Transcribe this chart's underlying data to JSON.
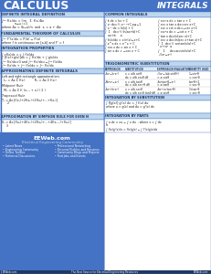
{
  "title_left": "CALCULUS",
  "title_right": "INTEGRALS",
  "header_bg": "#4472C4",
  "header_text_color": "#FFFFFF",
  "section_header_bg": "#BDD7EE",
  "section_header_text": "#1F3864",
  "body_bg": "#FFFFFF",
  "body_text": "#222222",
  "border_color": "#4472C4",
  "footer_bg": "#4472C4",
  "footer_main": "EEWeb.com",
  "footer_sub": "Electrical Engineering Community",
  "footer_bullets_left": [
    "Latest News",
    "Engineering Community",
    "Online Toolbox",
    "Technical Discussions"
  ],
  "footer_bullets_right": [
    "Professional Networking",
    "Personal Profiles and Resumes",
    "Community Blogs and Projects",
    "Find Jobs and Events"
  ],
  "footer_bottom": "EEWeb.com            The Best Source for Electrical Engineering Resources            EEWeb.com",
  "left_sections": [
    {
      "title": "DEFINITE INTEGRAL DEFINITION",
      "lines": [
        "∫ᵃᵇ f(x)dx = lim  Σ f(xᵢ)Δx",
        "           n→∞ i=1",
        "where Δx = (b-a)/n  and  xᵢ = a + iΔx"
      ]
    },
    {
      "title": "FUNDAMENTAL THEOREM OF CALCULUS",
      "lines": [
        "∫ᵃᵇ F'(x)dx = F(b) - F(a)",
        "where f is continuous on [a,b] and F' = f"
      ]
    },
    {
      "title": "INTEGRATION PROPERTIES",
      "lines": [
        "∫ cf(x)dx = c ∫ f(x)dx",
        "∫ [f(x) + g(x)]dx = ∫ f(x)dx + ∫ g(x)dx",
        "∫ᵃᵇ f(x)dx = 0  and  ∫ᵃᵇ f(x)dx = -∫ᵇᵃ f(x)dx",
        "∫ᵃᵇ f(x)dx + ∫ᵇᶜ f(x)dx = ∫ᵃᶜ f(x)dx"
      ]
    },
    {
      "title": "APPROXIMATING DEFINITE INTEGRALS",
      "lines": [
        "Left and right rectangle approximations",
        "          n                    n",
        "Lₙ=Δx Σ f(xᵢ)       Rₙ=Δx Σ f(xᵢ)",
        "         i=1                  i=1",
        "Midpoint Rule",
        "       n",
        "Mₙ=Δx Σ  f( (xᵢ₋₁+xᵢ)/2 )",
        "      i=1",
        "Trapezoid Rule",
        "Tₙ=(Δx/2)[f(x₀)+2f(x₁)+2f(x₂)+...+f(xₙ)]"
      ]
    }
  ],
  "right_sections_top": [
    {
      "title": "COMMON INTEGRALS",
      "col1": [
        "∫ k dx = kx + C",
        "∫ xⁿ dx = ½ x^{n+1} + C, n ≠ -1",
        "              n+1",
        "∫ x⁻¹ dx = ∫ ½ dx = ln|x| + C",
        "              x",
        "∫  ½   dx = ½ ln|ax+b| + C",
        "   ax+b       a",
        "∫ ln(x) dx = x ln(x) - x + C",
        "∫ e^x dx = e^x + C",
        "∫ cos x dx = sin x + C",
        "∫ sin x dx = -cos x + C"
      ],
      "col2": [
        "∫ sec²x dx = tan x + C",
        "∫ sec x tan x dx = sec x + C",
        "∫ csc x cot x dx = -csc x + C",
        "∫ csc²x dx = -cot x + C",
        "∫ tan x dx = ln|sec x| + C",
        "∫ sec x dx = ln|sec x+tan x|+C",
        "∫  1   dx = ½ arctan(x/a)+C",
        "  x²+a²     a",
        "∫    1      dx = arcsin(x/a)+C",
        "   √(a²-x²)"
      ]
    }
  ],
  "trig_sub_section": {
    "title": "TRIGONOMETRIC SUBSTITUTION",
    "headers": [
      "EXPRESSION",
      "SUBSTITUTION",
      "EXPRESSION EVALUATION",
      "IDENTITY USED"
    ],
    "rows": [
      [
        "√(a²-b²x²)",
        "x = a/b sinθ\ndx = a/b cosθ dθ",
        "√(a²-(ab sinθ)²)\n= a cosθ",
        "1-sin²θ\n= cos²θ"
      ],
      [
        "√(b²x²-a²)",
        "x = a/b tanθ\ndx = a/b sec²θ dθ",
        "√(a² tan²θ-a²)\n= a tanθ",
        "tan²θ+1\n= tan²θ"
      ],
      [
        "√(a²+b²x²)",
        "x = a/b secθ\ndx = a/b secθ tanθ dθ",
        "√(a²+a²tan²θ)\n= a secθ",
        "1+tan²θ\n= sec²θ"
      ]
    ]
  },
  "bottom_left_section": {
    "title": "APPROXIMATION BY SIMPSON RULE FOR EVEN N",
    "lines": [
      "Sₙ = Δx [f(x₀)+4f(x₁)+2f(x₂)+ ... + 2f(xₙ₋₂)+4f(xₙ₋₁)+f(xₙ)]",
      "      3"
    ]
  },
  "bottom_right_sections": [
    {
      "title": "INTEGRATION BY SUBSTITUTION",
      "lines": [
        "∫ᵃᵇ f[g(x)] g'(x)dx = ∫ f(u)du",
        "                      g(a)",
        "where u = g(x) and du = g'(x)dx"
      ]
    },
    {
      "title": "INTEGRATION BY PARTS",
      "lines": [
        "∫ u dv = uv - ∫ v du  , where v = ∫ dv",
        "or",
        "∫ f(x)g'(x)dx = f(x)g(x) - ∫ f'(x)g(x)dx"
      ]
    }
  ]
}
